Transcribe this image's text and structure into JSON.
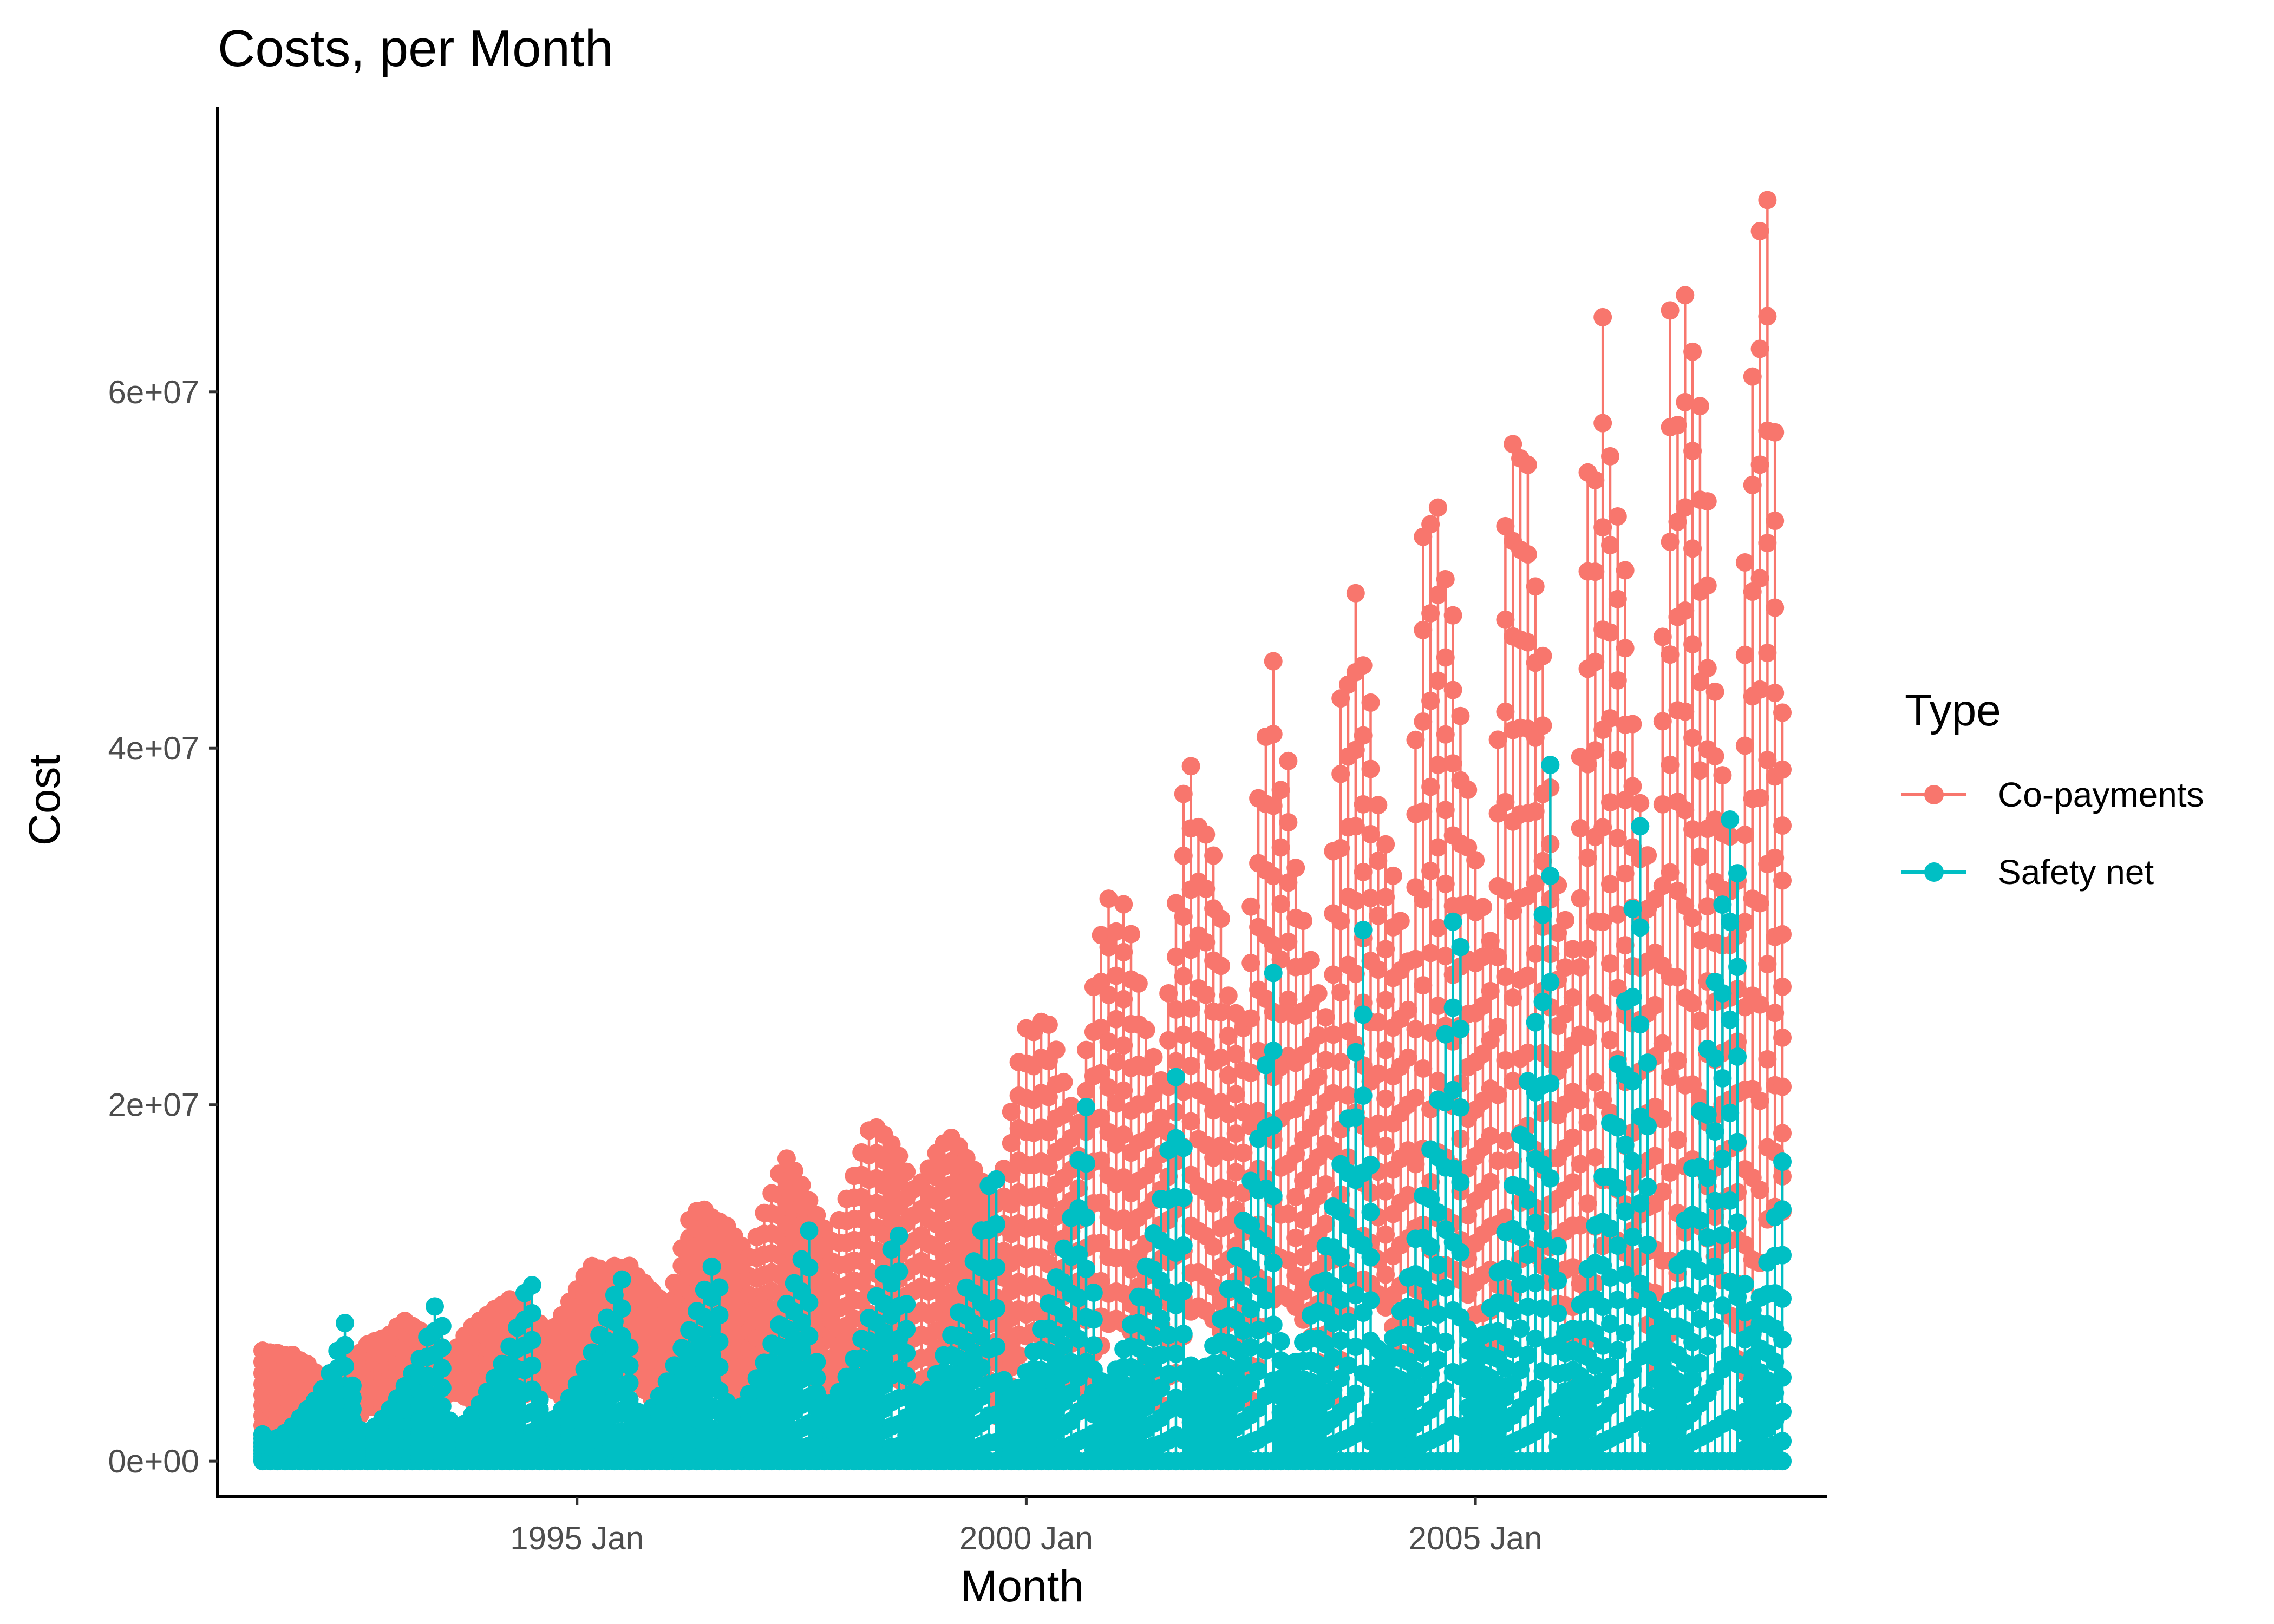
{
  "chart_data": {
    "type": "line",
    "title": "Costs, per Month",
    "xlabel": "Month",
    "ylabel": "Cost",
    "x_ticks": [
      "1995 Jan",
      "2000 Jan",
      "2005 Jan"
    ],
    "y_ticks": [
      "0e+00",
      "2e+07",
      "4e+07",
      "6e+07"
    ],
    "y_tick_values": [
      0,
      20000000,
      40000000,
      60000000
    ],
    "xlim": [
      "1991 Jul",
      "2008 Jun"
    ],
    "ylim": [
      -2000000,
      76000000
    ],
    "legend_title": "Type",
    "legend_position": "right",
    "grid": false,
    "series": [
      {
        "name": "Co-payments",
        "color": "#F8766D",
        "monthly_peak": [
          6200000,
          6100000,
          6100000,
          5900000,
          6100000,
          5700000,
          5600000,
          5300000,
          4800000,
          4500000,
          4400000,
          4600000,
          5200000,
          5600000,
          6000000,
          6500000,
          6700000,
          6800000,
          7000000,
          7200000,
          7800000,
          7900000,
          7500000,
          7300000,
          7000000,
          6800000,
          6400000,
          6000000,
          6200000,
          6800000,
          7400000,
          7700000,
          8000000,
          8300000,
          8600000,
          8800000,
          9100000,
          9000000,
          8700000,
          8200000,
          7800000,
          7500000,
          7300000,
          7800000,
          8500000,
          9200000,
          9800000,
          10500000,
          11000000,
          10800000,
          10600000,
          11000000,
          10700000,
          11200000,
          10500000,
          10200000,
          9800000,
          9400000,
          9000000,
          8600000,
          10200000,
          12000000,
          13500000,
          14000000,
          14200000,
          13800000,
          13400000,
          13500000,
          12900000,
          12400000,
          11900000,
          11300000,
          12800000,
          14000000,
          15000000,
          16000000,
          17100000,
          16500000,
          15800000,
          15000000,
          14200000,
          13500000,
          12800000,
          12200000,
          13800000,
          14800000,
          16000000,
          17200000,
          18500000,
          18800000,
          18500000,
          18000000,
          17500000,
          16800000,
          15900000,
          15000000,
          15800000,
          16500000,
          17300000,
          17800000,
          18200000,
          17800000,
          17200000,
          16600000,
          16000000,
          15400000,
          14800000,
          14300000,
          17000000,
          20000000,
          22500000,
          24300000,
          24000000,
          24600000,
          24800000,
          23800000,
          22000000,
          20500000,
          19500000,
          18700000,
          24500000,
          27000000,
          29700000,
          31600000,
          29500000,
          31500000,
          30200000,
          28000000,
          24800000,
          23500000,
          22000000,
          21000000,
          28200000,
          32000000,
          38000000,
          39000000,
          35600000,
          35300000,
          34500000,
          32500000,
          26600000,
          25500000,
          24800000,
          24000000,
          34100000,
          38000000,
          41000000,
          45000000,
          37500000,
          40200000,
          34000000,
          31000000,
          28900000,
          27000000,
          25500000,
          24500000,
          38800000,
          44000000,
          43500000,
          49000000,
          44700000,
          43300000,
          37300000,
          35000000,
          33700000,
          31500000,
          29000000,
          27300000,
          47400000,
          53400000,
          52400000,
          53600000,
          49500000,
          48000000,
          42500000,
          38800000,
          34700000,
          32000000,
          30000000,
          28500000,
          47500000,
          54400000,
          57700000,
          56100000,
          55900000,
          49300000,
          46300000,
          39400000,
          33000000,
          31000000,
          29500000,
          28000000,
          47000000,
          59200000,
          53900000,
          65700000,
          56000000,
          53100000,
          51200000,
          42400000,
          37800000,
          35000000,
          32500000,
          30500000,
          57600000,
          68000000,
          55000000,
          67300000,
          61900000,
          59300000,
          55100000,
          44100000,
          39500000,
          36000000,
          33500000,
          31500000,
          65500000,
          58300000,
          72900000,
          70300000,
          56500000,
          42000000
        ],
        "monthly_trough": [
          600000,
          500000,
          500000,
          600000,
          600000,
          700000,
          700000,
          700000,
          700000,
          600000,
          500000,
          400000,
          1500000,
          2000000,
          2500000,
          3000000,
          3100000,
          2900000,
          2700000,
          2500000,
          2300000,
          2000000,
          1500000,
          1000000,
          1800000,
          2500000,
          3300000,
          3800000,
          3900000,
          3700000,
          3500000,
          3300000,
          3000000,
          2600000,
          2000000,
          1300000,
          2000000,
          2800000,
          3700000,
          4300000,
          4400000,
          4300000,
          4100000,
          3800000,
          3400000,
          3000000,
          2300000,
          1500000,
          2000000,
          3000000,
          4000000,
          4700000,
          4900000,
          4800000,
          4500000,
          4200000,
          3800000,
          3300000,
          2500000,
          1600000,
          2200000,
          3400000,
          4600000,
          5300000,
          5500000,
          5400000,
          5100000,
          4800000,
          4300000,
          3700000,
          2800000,
          1800000,
          2400000,
          3700000,
          5000000,
          5800000,
          6000000,
          5900000,
          5600000,
          5200000,
          4700000,
          4000000,
          3000000,
          2000000,
          2500000,
          3900000,
          5300000,
          6200000,
          6400000,
          6200000,
          5900000,
          5500000,
          5000000,
          4200000,
          3200000,
          2100000,
          2600000,
          4000000,
          5500000,
          6400000,
          6600000,
          6400000,
          6100000,
          5700000,
          5200000,
          4400000,
          3300000,
          2200000,
          2800000,
          4400000,
          6000000,
          7000000,
          7300000,
          7100000,
          6700000,
          6300000,
          5700000,
          4800000,
          3600000,
          2400000,
          3000000,
          4800000,
          6600000,
          7700000,
          8000000,
          7800000,
          7400000,
          6900000,
          6200000,
          5300000,
          4000000,
          2600000,
          3300000,
          5300000,
          7200000,
          8400000,
          8700000,
          8500000,
          8100000,
          7500000,
          6800000,
          5800000,
          4400000,
          2900000,
          3600000,
          5700000,
          7800000,
          9100000,
          9400000,
          9200000,
          8800000,
          8200000,
          7400000,
          6300000,
          4800000,
          3100000,
          3900000,
          6200000,
          8500000,
          9900000,
          10200000,
          10000000,
          9500000,
          8900000,
          8000000,
          6800000,
          5200000,
          3400000,
          4200000,
          6700000,
          9200000,
          10700000,
          11000000,
          10800000,
          10300000,
          9600000,
          8700000,
          7400000,
          5600000,
          3700000,
          4500000,
          7200000,
          9900000,
          11500000,
          11900000,
          11600000,
          11100000,
          10300000,
          9300000,
          7900000,
          6000000,
          3900000,
          4800000,
          7700000,
          10600000,
          12300000,
          12700000,
          12400000,
          11800000,
          11000000,
          10000000,
          8500000,
          6400000,
          4200000,
          5100000,
          8200000,
          11300000,
          13100000,
          13500000,
          13200000,
          12600000,
          11700000,
          10600000,
          9000000,
          6800000,
          4500000,
          5400000,
          8700000,
          12000000,
          13900000,
          14300000,
          14000000
        ]
      },
      {
        "name": "Safety net",
        "color": "#00BFC4",
        "monthly_peak": [
          1500000,
          1200000,
          1300000,
          1600000,
          2000000,
          2500000,
          3000000,
          3500000,
          4200000,
          5200000,
          6600000,
          8300000,
          2000000,
          1600000,
          1700000,
          2100000,
          2600000,
          3200000,
          3900000,
          4600000,
          5400000,
          6300000,
          8200000,
          9700000,
          2400000,
          1900000,
          2000000,
          2500000,
          3100000,
          3800000,
          4600000,
          5400000,
          6400000,
          7500000,
          9500000,
          9900000,
          2800000,
          2200000,
          2400000,
          3000000,
          3700000,
          4500000,
          5400000,
          6400000,
          7400000,
          8400000,
          9900000,
          10400000,
          3100000,
          2500000,
          2700000,
          3300000,
          4100000,
          5000000,
          6000000,
          7000000,
          8100000,
          9200000,
          10800000,
          11300000,
          3400000,
          2800000,
          3000000,
          3700000,
          4600000,
          5500000,
          6600000,
          7700000,
          8900000,
          10100000,
          11500000,
          13200000,
          3800000,
          3100000,
          3300000,
          4100000,
          5000000,
          6100000,
          7300000,
          8500000,
          9800000,
          11100000,
          12600000,
          12700000,
          4200000,
          3400000,
          3700000,
          4500000,
          5600000,
          6700000,
          8000000,
          9400000,
          10900000,
          12500000,
          15200000,
          17100000,
          4600000,
          3800000,
          4100000,
          5000000,
          6200000,
          7500000,
          9000000,
          10500000,
          12200000,
          14000000,
          17700000,
          20600000,
          5100000,
          4200000,
          4500000,
          5500000,
          6800000,
          8300000,
          10000000,
          11800000,
          13800000,
          15800000,
          19700000,
          24400000,
          5700000,
          4700000,
          5000000,
          6100000,
          7600000,
          9300000,
          11200000,
          13200000,
          15500000,
          17800000,
          22000000,
          27600000,
          6300000,
          5200000,
          5600000,
          6800000,
          8400000,
          10300000,
          12500000,
          14800000,
          17300000,
          20000000,
          24300000,
          32700000,
          7000000,
          5800000,
          6200000,
          7500000,
          9300000,
          11400000,
          13800000,
          16400000,
          19200000,
          22200000,
          27500000,
          36700000,
          7700000,
          6400000,
          6800000,
          8300000,
          10300000,
          12600000,
          15300000,
          18200000,
          21300000,
          24700000,
          31000000,
          39800000,
          8500000,
          7000000,
          7500000,
          9100000,
          11300000,
          13900000,
          16800000,
          20000000,
          23500000,
          27200000,
          33600000,
          37200000,
          9300000,
          7700000,
          8200000,
          10000000,
          12400000,
          15300000,
          18500000,
          22000000,
          25800000,
          29900000,
          35500000,
          37900000,
          10200000,
          8400000,
          9000000,
          11000000,
          13600000,
          16800000
        ],
        "monthly_trough": [
          0,
          0,
          0,
          0,
          0,
          0,
          0,
          0,
          0,
          0,
          0,
          0,
          0,
          0,
          0,
          0,
          0,
          0,
          0,
          0,
          0,
          0,
          0,
          0
        ]
      }
    ]
  }
}
